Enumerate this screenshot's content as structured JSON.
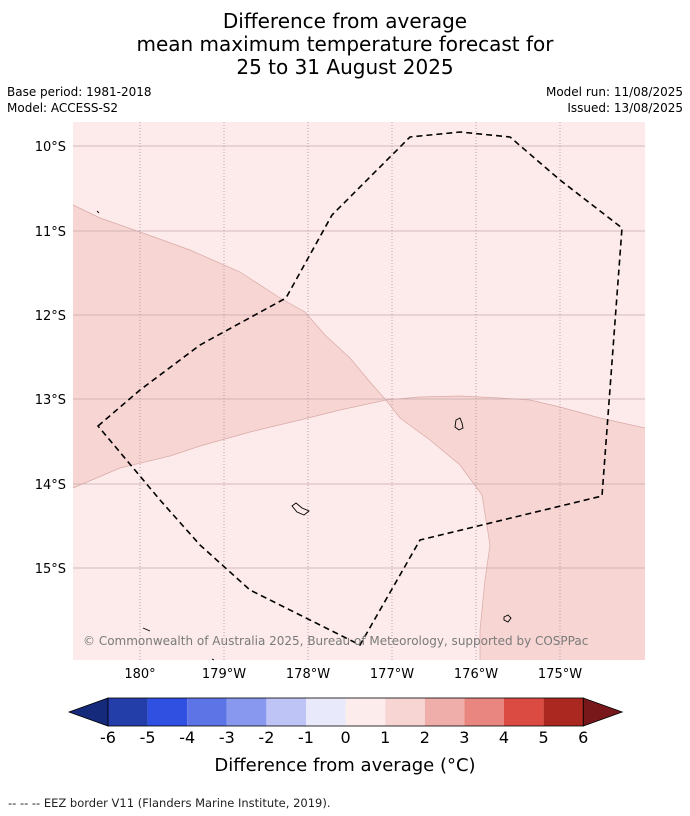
{
  "title": {
    "line1": "Difference from average",
    "line2": "mean maximum temperature forecast for",
    "line3": "25 to 31 August 2025"
  },
  "meta": {
    "base_period": "Base period: 1981-2018",
    "model": "Model: ACCESS-S2",
    "model_run": "Model run: 11/08/2025",
    "issued": "Issued: 13/08/2025"
  },
  "map": {
    "lat_labels": [
      "10°S",
      "11°S",
      "12°S",
      "13°S",
      "14°S",
      "15°S"
    ],
    "lon_labels": [
      "180°",
      "179°W",
      "178°W",
      "177°W",
      "176°W",
      "175°W"
    ],
    "copyright": "© Commonwealth of Australia 2025, Bureau of Meteorology, supported by COSPPac",
    "colors": {
      "band_0_1": "#fcebea",
      "band_1_2": "#f6d5d3",
      "grid": "#c9a9ad",
      "eez": "#000000"
    }
  },
  "colorbar": {
    "ticks": [
      "-6",
      "-5",
      "-4",
      "-3",
      "-2",
      "-1",
      "0",
      "1",
      "2",
      "3",
      "4",
      "5",
      "6"
    ],
    "colors": [
      "#162a7c",
      "#233ea8",
      "#2f50e0",
      "#5d74e6",
      "#8898ee",
      "#bec5f6",
      "#e8eafc",
      "#fceceb",
      "#f6d5d3",
      "#f0aeab",
      "#ea8680",
      "#dc4b42",
      "#aa2820",
      "#78181a"
    ],
    "label": "Difference from average (°C)"
  },
  "footer": {
    "legend": "-- -- -- EEZ border V11 (Flanders Marine Institute, 2019)."
  }
}
